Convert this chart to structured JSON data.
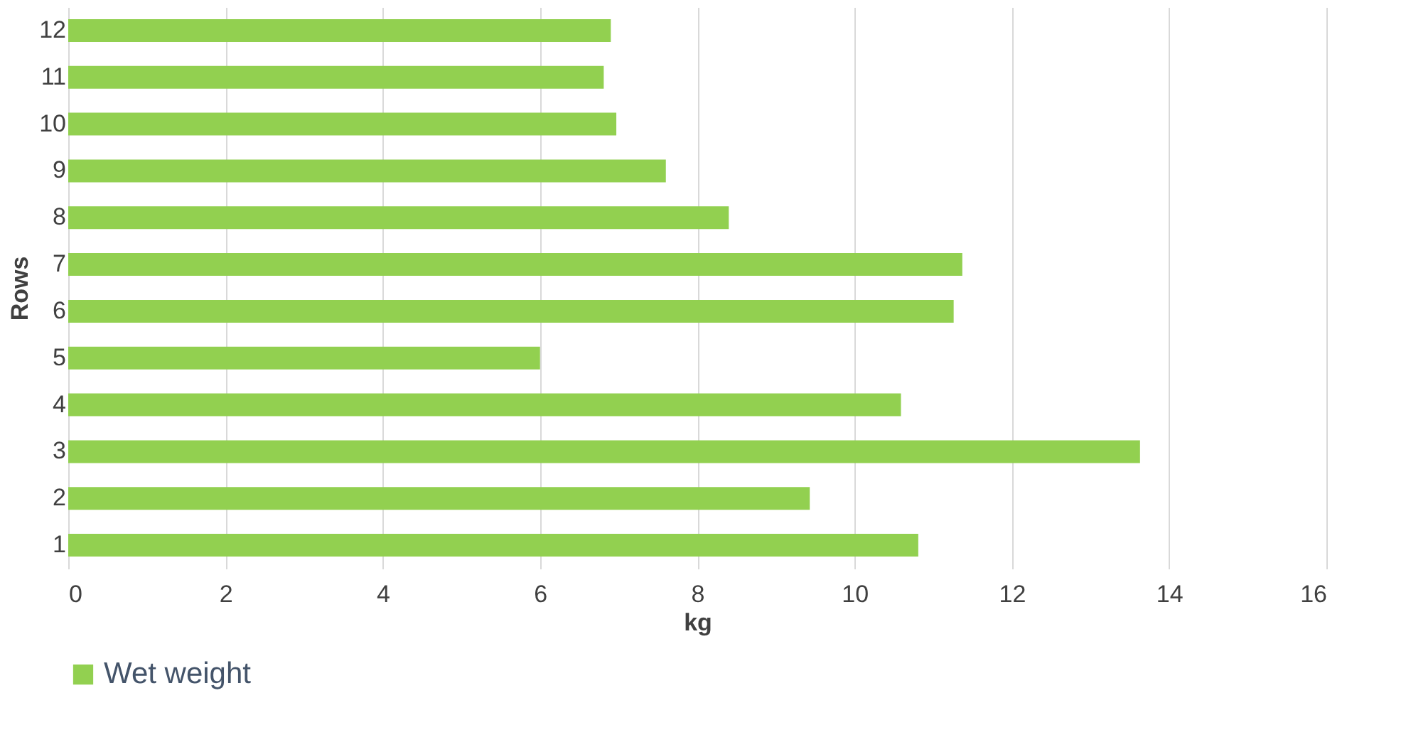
{
  "chart_data": {
    "type": "bar",
    "orientation": "horizontal",
    "xlabel": "kg",
    "ylabel": "Rows",
    "categories": [
      "12",
      "11",
      "10",
      "9",
      "8",
      "7",
      "6",
      "5",
      "4",
      "3",
      "2",
      "1"
    ],
    "series": [
      {
        "name": "Wet weight",
        "color": "#92d050",
        "values": [
          6.9,
          6.81,
          6.97,
          7.6,
          8.4,
          11.37,
          11.26,
          6.0,
          10.59,
          13.63,
          9.43,
          10.81
        ]
      }
    ],
    "xlim": [
      0,
      16
    ],
    "xticks": [
      0,
      2,
      4,
      6,
      8,
      10,
      12,
      14,
      16
    ],
    "grid": "x",
    "legend": "bottom"
  }
}
